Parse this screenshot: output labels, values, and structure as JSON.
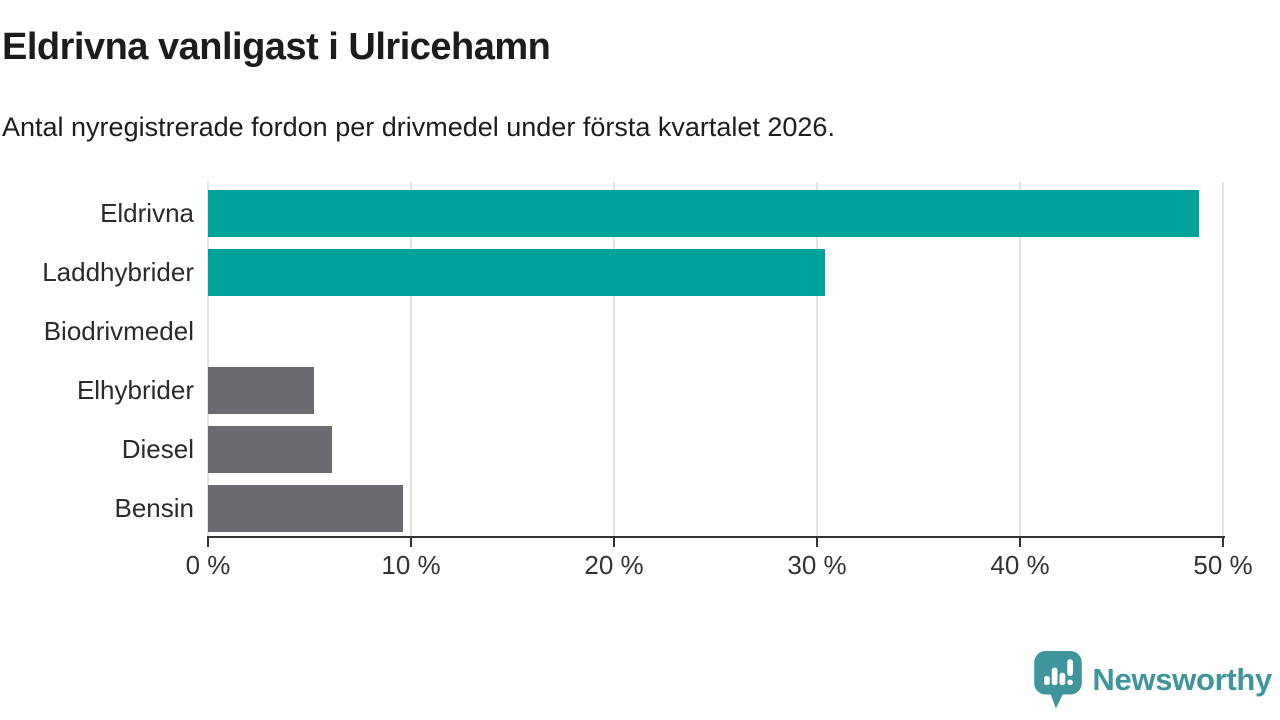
{
  "header": {
    "title": "Eldrivna vanligast i Ulricehamn",
    "subtitle": "Antal nyregistrerade fordon per drivmedel under första kvartalet 2026."
  },
  "chart_data": {
    "type": "bar",
    "orientation": "horizontal",
    "title": "Eldrivna vanligast i Ulricehamn",
    "subtitle": "Antal nyregistrerade fordon per drivmedel under första kvartalet 2026.",
    "categories": [
      "Eldrivna",
      "Laddhybrider",
      "Biodrivmedel",
      "Elhybrider",
      "Diesel",
      "Bensin"
    ],
    "values": [
      48.8,
      30.4,
      0,
      5.2,
      6.1,
      9.6
    ],
    "unit": "%",
    "bar_colors": [
      "#00A39B",
      "#00A39B",
      "#6A6A70",
      "#6A6A70",
      "#6A6A70",
      "#6A6A70"
    ],
    "xlim": [
      0,
      50
    ],
    "x_tick_values": [
      0,
      10,
      20,
      30,
      40,
      50
    ],
    "x_tick_labels": [
      "0 %",
      "10 %",
      "20 %",
      "30 %",
      "40 %",
      "50 %"
    ],
    "grid": "vertical",
    "legend": "none"
  },
  "colors": {
    "accent_teal": "#00A39B",
    "neutral_gray": "#6A6A70",
    "gridline": "#e4e4e4",
    "axis": "#333333",
    "text": "#1d1d1d",
    "brand_teal": "#3E959B"
  },
  "footer": {
    "brand": "Newsworthy",
    "logo_icon": "newsworthy-speech-bubble-bar-chart-icon"
  }
}
